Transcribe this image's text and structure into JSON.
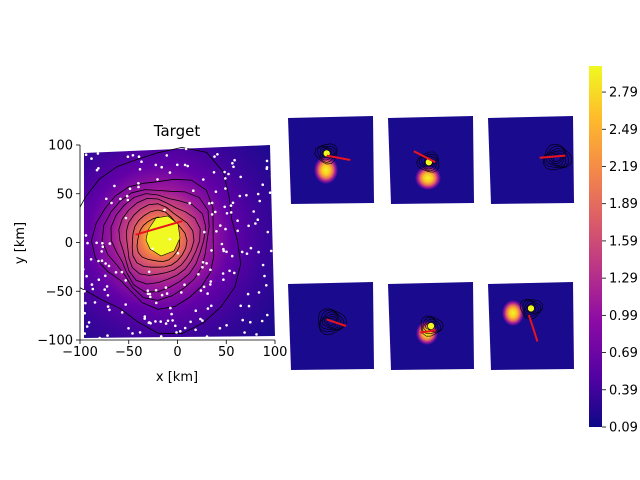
{
  "colors": {
    "colormap": [
      "#0d0887",
      "#5302a3",
      "#8b0aa5",
      "#b83289",
      "#db5c68",
      "#f48849",
      "#febd2a",
      "#f0f921"
    ],
    "arrow": "#e8141d",
    "station": "#ffffff",
    "contour": "#000000"
  },
  "chart_data": [
    {
      "type": "heatmap",
      "panel": "target",
      "title": "Target",
      "xlabel": "x [km]",
      "ylabel": "y [km]",
      "xlim": [
        -100,
        100
      ],
      "ylim": [
        -100,
        100
      ],
      "xticks": [
        "−100",
        "−50",
        "0",
        "50",
        "100"
      ],
      "yticks": [
        "−100",
        "−50",
        "0",
        "50",
        "100"
      ],
      "peak": {
        "x": -20,
        "y": 2,
        "value": 2.95
      },
      "arrow": {
        "from": [
          -43,
          8
        ],
        "to": [
          5,
          22
        ]
      },
      "stations_shown": "many scattered white dots"
    },
    {
      "type": "heatmap",
      "panel": "sample-1",
      "peak": {
        "x": -10,
        "y": 15,
        "value": 2.9
      },
      "arrow": {
        "from": [
          -10,
          10
        ],
        "to": [
          45,
          0
        ]
      }
    },
    {
      "type": "heatmap",
      "panel": "sample-2",
      "peak": {
        "x": -5,
        "y": -5,
        "value": 2.9
      },
      "arrow": {
        "from": [
          -40,
          20
        ],
        "to": [
          10,
          -5
        ]
      }
    },
    {
      "type": "heatmap",
      "panel": "sample-3",
      "peak": {
        "x": 60,
        "y": 5,
        "value": 0.2
      },
      "arrow": {
        "from": [
          20,
          5
        ],
        "to": [
          80,
          10
        ]
      }
    },
    {
      "type": "heatmap",
      "panel": "sample-4",
      "peak": {
        "x": 0,
        "y": 10,
        "value": 0.2
      },
      "arrow": {
        "from": [
          -10,
          15
        ],
        "to": [
          35,
          0
        ]
      }
    },
    {
      "type": "heatmap",
      "panel": "sample-5",
      "peak": {
        "x": 0,
        "y": 0,
        "value": 2.9
      },
      "arrow": {
        "from": [
          -25,
          -15
        ],
        "to": [
          10,
          -10
        ]
      }
    },
    {
      "type": "heatmap",
      "panel": "sample-6",
      "peak": {
        "x": 0,
        "y": 40,
        "value": 2.9
      },
      "arrow": {
        "from": [
          -5,
          25
        ],
        "to": [
          15,
          -35
        ]
      }
    },
    {
      "type": "colorbar",
      "vmin": 0.09,
      "vmax": 3.0,
      "ticks": [
        {
          "value": 0.09,
          "label": "0.09"
        },
        {
          "value": 0.39,
          "label": "0.39"
        },
        {
          "value": 0.69,
          "label": "0.69"
        },
        {
          "value": 0.99,
          "label": "0.99"
        },
        {
          "value": 1.29,
          "label": "1.29"
        },
        {
          "value": 1.59,
          "label": "1.59"
        },
        {
          "value": 1.89,
          "label": "1.89"
        },
        {
          "value": 2.19,
          "label": "2.19"
        },
        {
          "value": 2.49,
          "label": "2.49"
        },
        {
          "value": 2.79,
          "label": "2.79"
        }
      ]
    }
  ]
}
